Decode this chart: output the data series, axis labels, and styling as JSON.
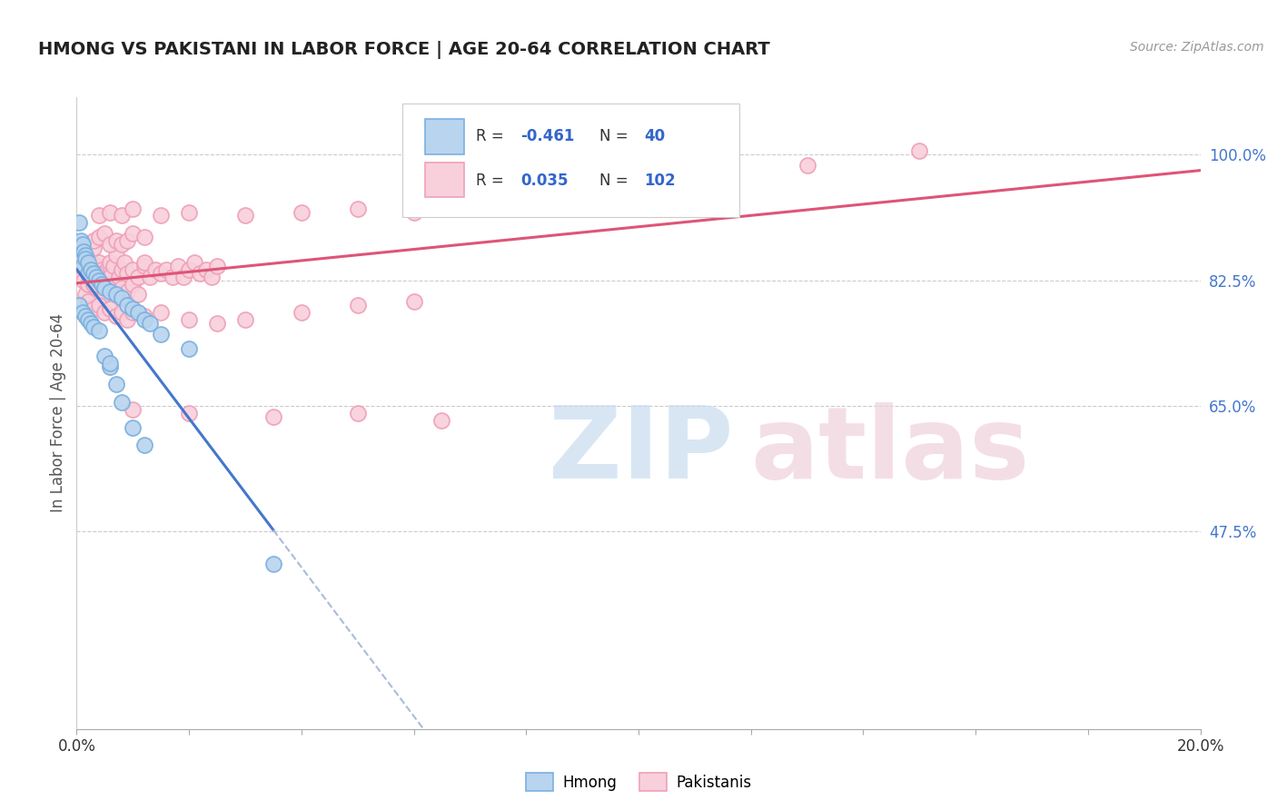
{
  "title": "HMONG VS PAKISTANI IN LABOR FORCE | AGE 20-64 CORRELATION CHART",
  "source": "Source: ZipAtlas.com",
  "ylabel": "In Labor Force | Age 20-64",
  "xmin": 0.0,
  "xmax": 20.0,
  "ymin": 20.0,
  "ymax": 108.0,
  "yticks": [
    47.5,
    65.0,
    82.5,
    100.0
  ],
  "hmong_R": -0.461,
  "hmong_N": 40,
  "pakistani_R": 0.035,
  "pakistani_N": 102,
  "hmong_color": "#7ab0e0",
  "hmong_fill": "#b8d4ee",
  "pakistani_color": "#f0a0b8",
  "pakistani_fill": "#f8d0dc",
  "hmong_line_color": "#4477cc",
  "pakistani_line_color": "#dd5577",
  "legend_hmong": "Hmong",
  "legend_pakistani": "Pakistanis",
  "hmong_scatter": [
    [
      0.05,
      90.5
    ],
    [
      0.08,
      88.0
    ],
    [
      0.1,
      87.5
    ],
    [
      0.12,
      86.5
    ],
    [
      0.15,
      86.0
    ],
    [
      0.1,
      84.5
    ],
    [
      0.15,
      85.5
    ],
    [
      0.2,
      85.0
    ],
    [
      0.2,
      83.5
    ],
    [
      0.25,
      84.0
    ],
    [
      0.3,
      83.5
    ],
    [
      0.35,
      83.0
    ],
    [
      0.4,
      82.5
    ],
    [
      0.45,
      82.0
    ],
    [
      0.5,
      81.5
    ],
    [
      0.6,
      81.0
    ],
    [
      0.7,
      80.5
    ],
    [
      0.8,
      80.0
    ],
    [
      0.9,
      79.0
    ],
    [
      1.0,
      78.5
    ],
    [
      1.1,
      78.0
    ],
    [
      1.2,
      77.0
    ],
    [
      1.3,
      76.5
    ],
    [
      1.5,
      75.0
    ],
    [
      2.0,
      73.0
    ],
    [
      0.6,
      70.5
    ],
    [
      0.7,
      68.0
    ],
    [
      0.8,
      65.5
    ],
    [
      1.0,
      62.0
    ],
    [
      1.2,
      59.5
    ],
    [
      0.05,
      79.0
    ],
    [
      0.1,
      78.0
    ],
    [
      0.15,
      77.5
    ],
    [
      0.2,
      77.0
    ],
    [
      0.25,
      76.5
    ],
    [
      0.3,
      76.0
    ],
    [
      0.4,
      75.5
    ],
    [
      3.5,
      43.0
    ],
    [
      0.5,
      72.0
    ],
    [
      0.6,
      71.0
    ]
  ],
  "pakistani_scatter": [
    [
      0.05,
      83.5
    ],
    [
      0.08,
      84.0
    ],
    [
      0.1,
      83.0
    ],
    [
      0.12,
      82.5
    ],
    [
      0.15,
      84.5
    ],
    [
      0.15,
      80.5
    ],
    [
      0.2,
      83.5
    ],
    [
      0.2,
      82.0
    ],
    [
      0.25,
      85.0
    ],
    [
      0.25,
      83.5
    ],
    [
      0.3,
      87.0
    ],
    [
      0.3,
      83.0
    ],
    [
      0.35,
      84.5
    ],
    [
      0.35,
      81.5
    ],
    [
      0.4,
      83.0
    ],
    [
      0.4,
      85.0
    ],
    [
      0.45,
      84.0
    ],
    [
      0.45,
      82.0
    ],
    [
      0.5,
      83.5
    ],
    [
      0.5,
      80.5
    ],
    [
      0.55,
      84.0
    ],
    [
      0.6,
      85.0
    ],
    [
      0.6,
      83.0
    ],
    [
      0.65,
      84.5
    ],
    [
      0.7,
      82.0
    ],
    [
      0.7,
      86.0
    ],
    [
      0.75,
      83.0
    ],
    [
      0.8,
      84.0
    ],
    [
      0.8,
      81.5
    ],
    [
      0.85,
      85.0
    ],
    [
      0.9,
      83.5
    ],
    [
      0.9,
      81.0
    ],
    [
      1.0,
      84.0
    ],
    [
      1.0,
      82.0
    ],
    [
      1.1,
      83.0
    ],
    [
      1.1,
      80.5
    ],
    [
      1.2,
      84.5
    ],
    [
      1.2,
      85.0
    ],
    [
      1.3,
      83.0
    ],
    [
      1.4,
      84.0
    ],
    [
      1.5,
      83.5
    ],
    [
      1.6,
      84.0
    ],
    [
      1.7,
      83.0
    ],
    [
      1.8,
      84.5
    ],
    [
      1.9,
      83.0
    ],
    [
      2.0,
      84.0
    ],
    [
      2.1,
      85.0
    ],
    [
      2.2,
      83.5
    ],
    [
      2.3,
      84.0
    ],
    [
      2.4,
      83.0
    ],
    [
      2.5,
      84.5
    ],
    [
      0.3,
      88.0
    ],
    [
      0.4,
      88.5
    ],
    [
      0.5,
      89.0
    ],
    [
      0.6,
      87.5
    ],
    [
      0.7,
      88.0
    ],
    [
      0.8,
      87.5
    ],
    [
      0.9,
      88.0
    ],
    [
      1.0,
      89.0
    ],
    [
      1.2,
      88.5
    ],
    [
      0.2,
      79.5
    ],
    [
      0.3,
      78.5
    ],
    [
      0.4,
      79.0
    ],
    [
      0.5,
      78.0
    ],
    [
      0.6,
      78.5
    ],
    [
      0.7,
      77.5
    ],
    [
      0.8,
      78.0
    ],
    [
      0.9,
      77.0
    ],
    [
      1.0,
      78.0
    ],
    [
      1.2,
      77.5
    ],
    [
      1.5,
      78.0
    ],
    [
      2.0,
      77.0
    ],
    [
      2.5,
      76.5
    ],
    [
      3.0,
      77.0
    ],
    [
      4.0,
      78.0
    ],
    [
      5.0,
      79.0
    ],
    [
      6.0,
      79.5
    ],
    [
      0.4,
      91.5
    ],
    [
      0.6,
      92.0
    ],
    [
      0.8,
      91.5
    ],
    [
      1.0,
      92.5
    ],
    [
      1.5,
      91.5
    ],
    [
      2.0,
      92.0
    ],
    [
      3.0,
      91.5
    ],
    [
      4.0,
      92.0
    ],
    [
      5.0,
      92.5
    ],
    [
      6.0,
      92.0
    ],
    [
      7.0,
      93.0
    ],
    [
      8.0,
      94.0
    ],
    [
      9.5,
      95.0
    ],
    [
      11.0,
      97.0
    ],
    [
      13.0,
      98.5
    ],
    [
      15.0,
      100.5
    ],
    [
      1.0,
      64.5
    ],
    [
      2.0,
      64.0
    ],
    [
      3.5,
      63.5
    ],
    [
      5.0,
      64.0
    ],
    [
      6.5,
      63.0
    ],
    [
      0.3,
      82.0
    ],
    [
      0.35,
      83.5
    ]
  ]
}
